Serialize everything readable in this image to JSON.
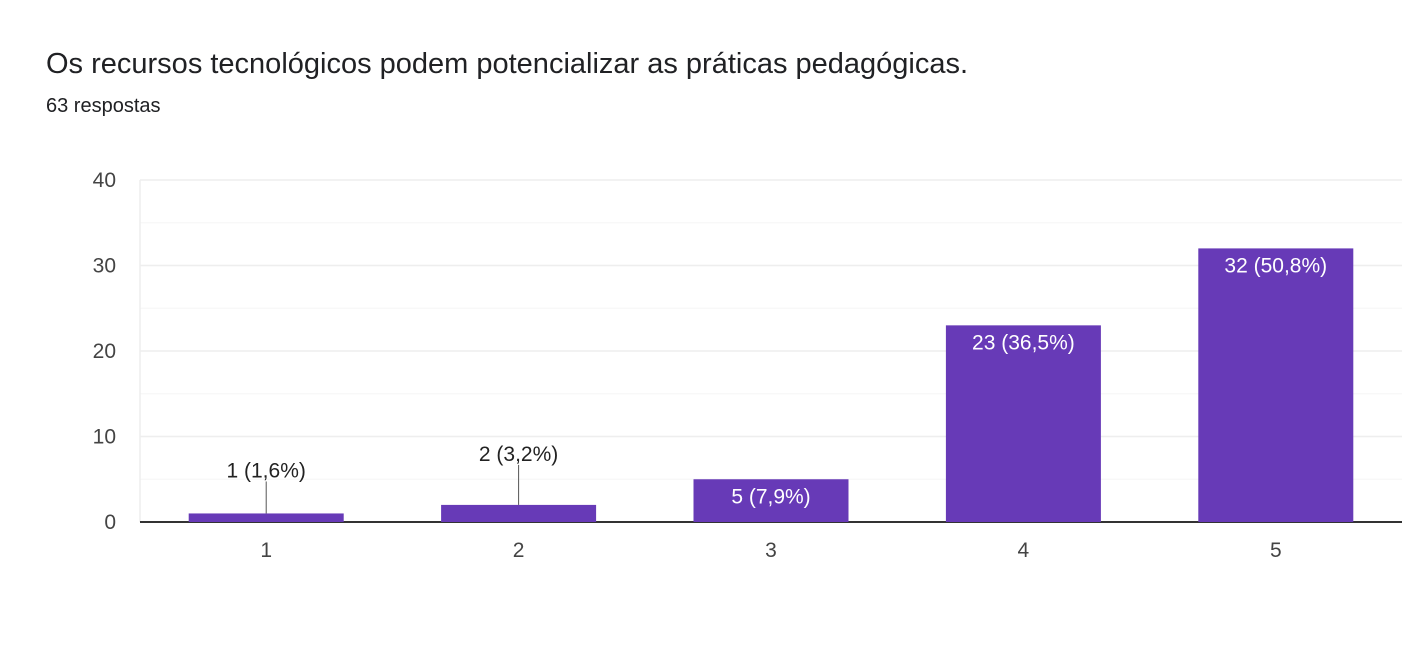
{
  "header": {
    "title": "Os recursos tecnológicos podem potencializar as práticas pedagógicas.",
    "responses": "63 respostas"
  },
  "colors": {
    "bar": "#673ab7",
    "gridline": "#eeeeee",
    "minor_gridline": "#f5f5f5",
    "baseline": "#333333"
  },
  "chart_data": {
    "type": "bar",
    "categories": [
      "1",
      "2",
      "3",
      "4",
      "5"
    ],
    "values": [
      1,
      2,
      5,
      23,
      32
    ],
    "data_labels": [
      "1 (1,6%)",
      "2 (3,2%)",
      "5 (7,9%)",
      "23 (36,5%)",
      "32 (50,8%)"
    ],
    "title": "Os recursos tecnológicos podem potencializar as práticas pedagógicas.",
    "subtitle": "63 respostas",
    "xlabel": "",
    "ylabel": "",
    "ylim": [
      0,
      40
    ],
    "yticks": [
      0,
      10,
      20,
      30,
      40
    ],
    "grid": true,
    "legend": "none"
  }
}
